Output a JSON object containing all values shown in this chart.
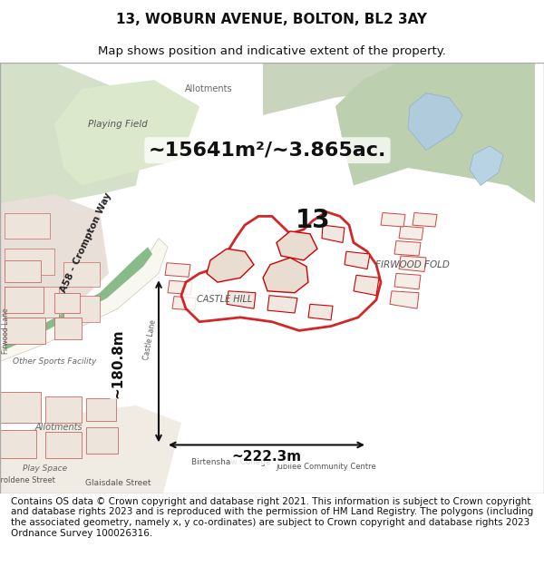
{
  "title_line1": "13, WOBURN AVENUE, BOLTON, BL2 3AY",
  "title_line2": "Map shows position and indicative extent of the property.",
  "title_fontsize": 11,
  "subtitle_fontsize": 9.5,
  "label_area": "~15641m²/~3.865ac.",
  "label_number": "13",
  "label_castlehill": "CASTLE HILL",
  "label_firwood": "FIRWOOD FOLD",
  "label_a58": "A58 - Crompton Way",
  "label_width": "~222.3m",
  "label_height": "~180.8m",
  "footer_text": "Contains OS data © Crown copyright and database right 2021. This information is subject to Crown copyright and database rights 2023 and is reproduced with the permission of HM Land Registry. The polygons (including the associated geometry, namely x, y co-ordinates) are subject to Crown copyright and database rights 2023 Ordnance Survey 100026316.",
  "footer_fontsize": 7.5,
  "map_bg": "#f0ede8",
  "fig_width": 6.0,
  "fig_height": 6.25
}
